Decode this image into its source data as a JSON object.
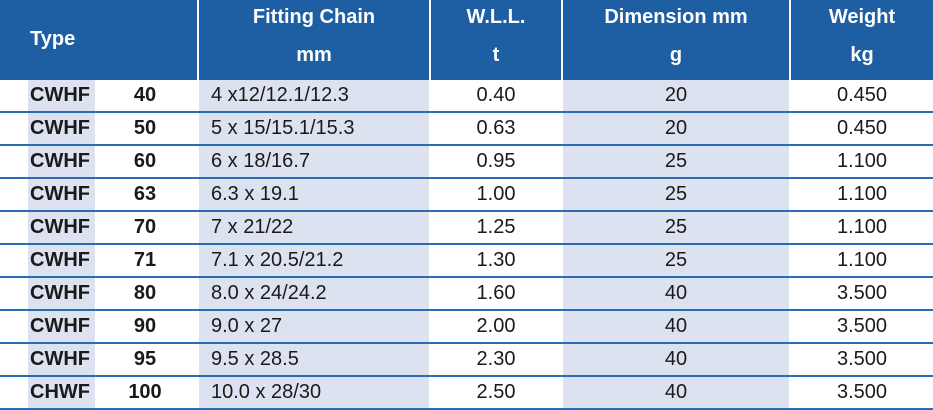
{
  "table": {
    "header": {
      "type": "Type",
      "chain": [
        "Fitting Chain",
        "mm"
      ],
      "wll": [
        "W.L.L.",
        "t"
      ],
      "dimension": [
        "Dimension mm",
        "g"
      ],
      "weight": [
        "Weight",
        "kg"
      ]
    },
    "rows": [
      [
        "CWHF",
        "40",
        "4 x12/12.1/12.3",
        "0.40",
        "20",
        "0.450"
      ],
      [
        "CWHF",
        "50",
        "5 x 15/15.1/15.3",
        "0.63",
        "20",
        "0.450"
      ],
      [
        "CWHF",
        "60",
        "6 x 18/16.7",
        "0.95",
        "25",
        "1.100"
      ],
      [
        "CWHF",
        "63",
        "6.3 x 19.1",
        "1.00",
        "25",
        "1.100"
      ],
      [
        "CWHF",
        "70",
        "7 x 21/22",
        "1.25",
        "25",
        "1.100"
      ],
      [
        "CWHF",
        "71",
        "7.1 x 20.5/21.2",
        "1.30",
        "25",
        "1.100"
      ],
      [
        "CWHF",
        "80",
        "8.0 x 24/24.2",
        "1.60",
        "40",
        "3.500"
      ],
      [
        "CWHF",
        "90",
        "9.0 x 27",
        "2.00",
        "40",
        "3.500"
      ],
      [
        "CWHF",
        "95",
        "9.5 x 28.5",
        "2.30",
        "40",
        "3.500"
      ],
      [
        "CHWF",
        "100",
        "10.0 x 28/30",
        "2.50",
        "40",
        "3.500"
      ]
    ]
  }
}
